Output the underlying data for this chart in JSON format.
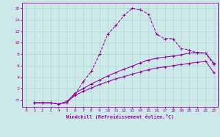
{
  "xlabel": "Windchill (Refroidissement éolien,°C)",
  "bg_color": "#cce8e8",
  "line_color": "#990099",
  "grid_color": "#aad4d4",
  "xlim": [
    -0.5,
    23.5
  ],
  "ylim": [
    -1.2,
    17
  ],
  "xticks": [
    0,
    1,
    2,
    3,
    4,
    5,
    6,
    7,
    8,
    9,
    10,
    11,
    12,
    13,
    14,
    15,
    16,
    17,
    18,
    19,
    20,
    21,
    22,
    23
  ],
  "yticks": [
    0,
    2,
    4,
    6,
    8,
    10,
    12,
    14,
    16
  ],
  "ytick_labels": [
    "-0",
    "2",
    "4",
    "6",
    "8",
    "10",
    "12",
    "14",
    "16"
  ],
  "curve1_x": [
    1,
    2,
    3,
    4,
    5,
    6,
    7,
    8,
    9,
    10,
    11,
    12,
    13,
    14,
    15,
    16,
    17,
    18,
    19,
    20,
    21,
    22,
    23
  ],
  "curve1_y": [
    -0.5,
    -0.5,
    -0.5,
    -0.7,
    -0.5,
    1.0,
    3.2,
    5.0,
    8.0,
    11.5,
    13.0,
    14.8,
    16.0,
    15.8,
    15.0,
    11.5,
    10.7,
    10.7,
    9.0,
    8.7,
    8.2,
    8.2,
    6.2
  ],
  "curve2_x": [
    1,
    2,
    3,
    4,
    5,
    6,
    7,
    8,
    9,
    10,
    11,
    12,
    13,
    14,
    15,
    16,
    17,
    18,
    19,
    20,
    21,
    22,
    23
  ],
  "curve2_y": [
    -0.5,
    -0.5,
    -0.5,
    -0.7,
    -0.3,
    1.2,
    2.0,
    2.8,
    3.5,
    4.2,
    4.8,
    5.4,
    5.9,
    6.5,
    7.0,
    7.3,
    7.5,
    7.7,
    7.9,
    8.2,
    8.3,
    8.2,
    6.5
  ],
  "curve3_x": [
    1,
    2,
    3,
    4,
    5,
    6,
    7,
    8,
    9,
    10,
    11,
    12,
    13,
    14,
    15,
    16,
    17,
    18,
    19,
    20,
    21,
    22,
    23
  ],
  "curve3_y": [
    -0.5,
    -0.5,
    -0.5,
    -0.7,
    -0.3,
    0.8,
    1.5,
    2.1,
    2.7,
    3.2,
    3.7,
    4.1,
    4.5,
    4.9,
    5.3,
    5.6,
    5.8,
    6.0,
    6.2,
    6.4,
    6.6,
    6.8,
    4.8
  ]
}
